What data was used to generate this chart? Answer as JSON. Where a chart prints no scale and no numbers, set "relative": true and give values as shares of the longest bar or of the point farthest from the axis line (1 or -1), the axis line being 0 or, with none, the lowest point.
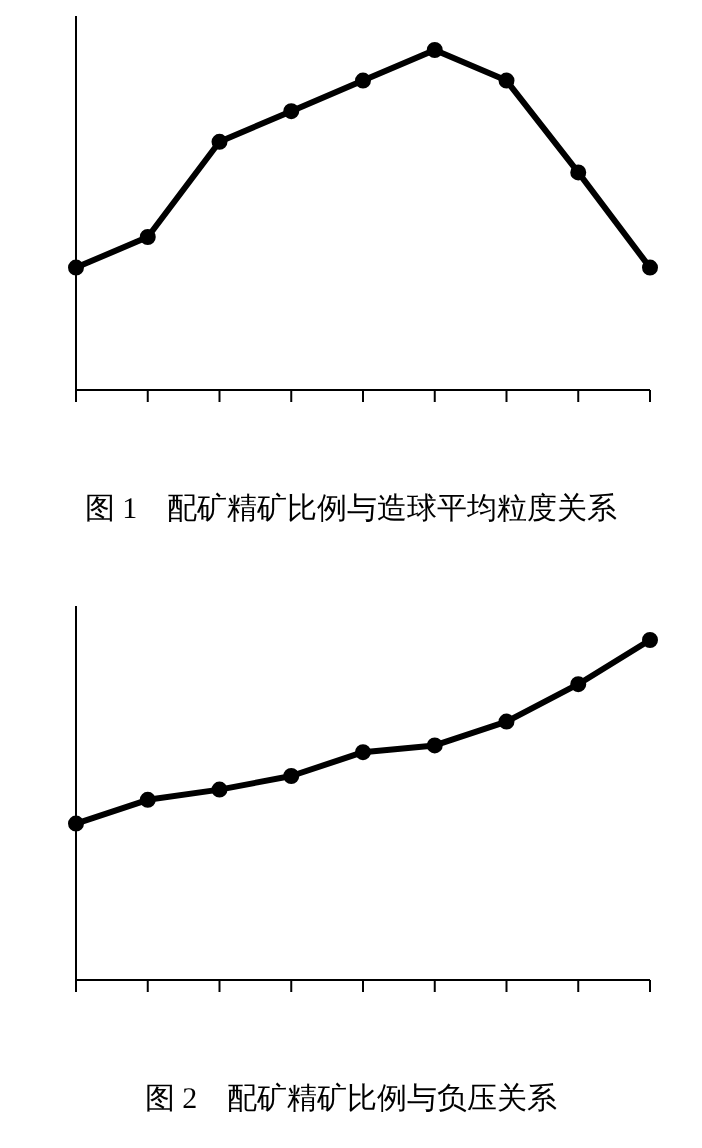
{
  "chart_data": [
    {
      "type": "line",
      "title": "图 1　配矿精矿比例与造球平均粒度关系",
      "relative": true,
      "categories": [
        null,
        null,
        null,
        null,
        null,
        null,
        null,
        null,
        null
      ],
      "series": [
        {
          "color": "#000000",
          "values": [
            0.36,
            0.45,
            0.73,
            0.82,
            0.91,
            1,
            0.91,
            0.64,
            0.36
          ]
        }
      ],
      "marker": "circle",
      "line_style": "solid",
      "grid": false,
      "legend": false
    },
    {
      "type": "line",
      "title": "图 2　配矿精矿比例与负压关系",
      "relative": true,
      "categories": [
        null,
        null,
        null,
        null,
        null,
        null,
        null,
        null,
        null
      ],
      "series": [
        {
          "color": "#000000",
          "values": [
            0.46,
            0.53,
            0.56,
            0.6,
            0.67,
            0.69,
            0.76,
            0.87,
            1
          ]
        }
      ],
      "marker": "circle",
      "line_style": "solid",
      "grid": false,
      "legend": false
    }
  ]
}
